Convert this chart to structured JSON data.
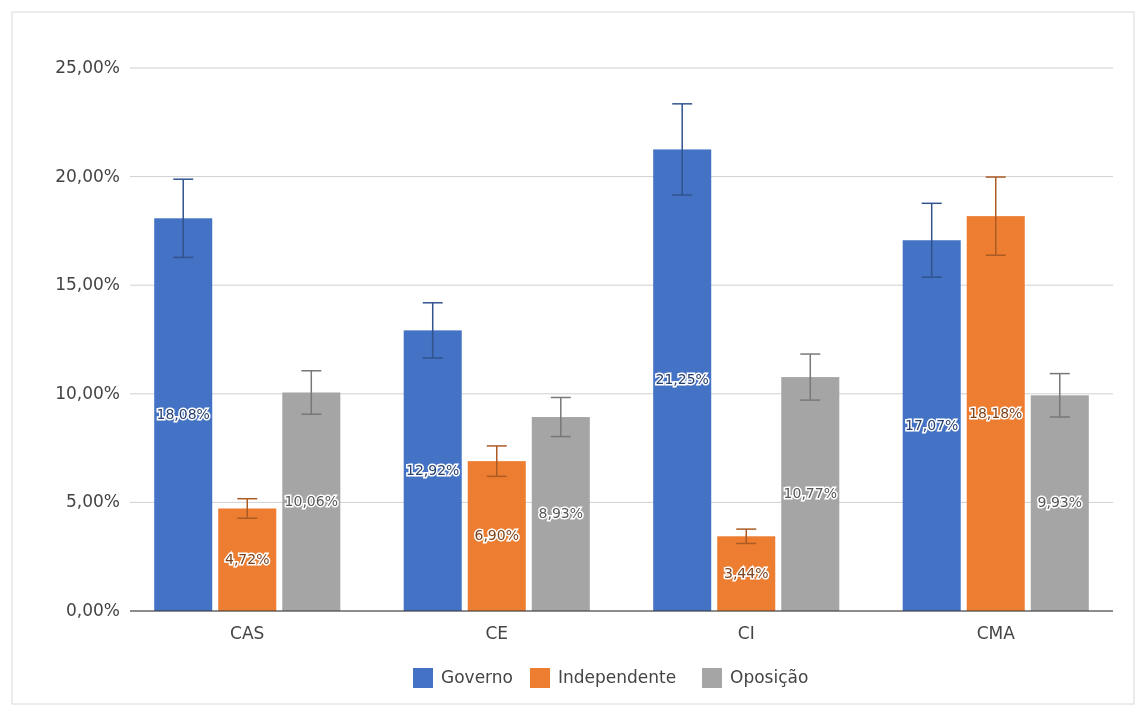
{
  "chart_data": {
    "type": "bar",
    "categories": [
      "CAS",
      "CE",
      "CI",
      "CMA"
    ],
    "series": [
      {
        "name": "Governo",
        "color": "#4472c4",
        "values": [
          18.08,
          12.92,
          21.25,
          17.07
        ],
        "errors": [
          1.8,
          1.27,
          2.1,
          1.7
        ],
        "value_labels": [
          "18,08%",
          "12,92%",
          "21,25%",
          "17,07%"
        ]
      },
      {
        "name": "Independente",
        "color": "#ed7d31",
        "values": [
          4.72,
          6.9,
          3.44,
          18.18
        ],
        "errors": [
          0.45,
          0.7,
          0.33,
          1.8
        ],
        "value_labels": [
          "4,72%",
          "6,90%",
          "3,44%",
          "18,18%"
        ]
      },
      {
        "name": "Oposição",
        "color": "#a5a5a5",
        "values": [
          10.06,
          8.93,
          10.77,
          9.93
        ],
        "errors": [
          1.0,
          0.9,
          1.06,
          1.0
        ],
        "value_labels": [
          "10,06%",
          "8,93%",
          "10,77%",
          "9,93%"
        ]
      }
    ],
    "ylim": [
      0,
      25
    ],
    "yticks": [
      {
        "value": 0,
        "label": "0,00%"
      },
      {
        "value": 5,
        "label": "5,00%"
      },
      {
        "value": 10,
        "label": "10,00%"
      },
      {
        "value": 15,
        "label": "15,00%"
      },
      {
        "value": 20,
        "label": "20,00%"
      },
      {
        "value": 25,
        "label": "25,00%"
      }
    ],
    "grid": "y",
    "legend": "bottom"
  }
}
